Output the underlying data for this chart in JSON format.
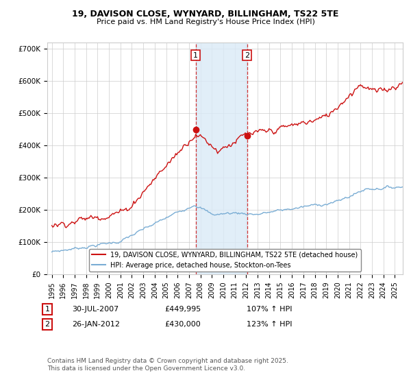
{
  "title_line1": "19, DAVISON CLOSE, WYNYARD, BILLINGHAM, TS22 5TE",
  "title_line2": "Price paid vs. HM Land Registry's House Price Index (HPI)",
  "ylim": [
    0,
    720000
  ],
  "yticks": [
    0,
    100000,
    200000,
    300000,
    400000,
    500000,
    600000,
    700000
  ],
  "ytick_labels": [
    "£0",
    "£100K",
    "£200K",
    "£300K",
    "£400K",
    "£500K",
    "£600K",
    "£700K"
  ],
  "hpi_color": "#7aadd4",
  "price_color": "#cc1111",
  "shaded_color": "#daeaf7",
  "marker_color": "#cc1111",
  "background_color": "#ffffff",
  "grid_color": "#cccccc",
  "t1_year_float": 2007.58,
  "t2_year_float": 2012.08,
  "t1_price": 449995,
  "t2_price": 430000,
  "legend1_label": "19, DAVISON CLOSE, WYNYARD, BILLINGHAM, TS22 5TE (detached house)",
  "legend2_label": "HPI: Average price, detached house, Stockton-on-Tees",
  "footnote": "Contains HM Land Registry data © Crown copyright and database right 2025.\nThis data is licensed under the Open Government Licence v3.0.",
  "xstart_year": 1995,
  "xend_year": 2025,
  "t1_label": "30-JUL-2007",
  "t2_label": "26-JAN-2012",
  "t1_price_label": "£449,995",
  "t2_price_label": "£430,000",
  "t1_hpi_label": "107% ↑ HPI",
  "t2_hpi_label": "123% ↑ HPI"
}
